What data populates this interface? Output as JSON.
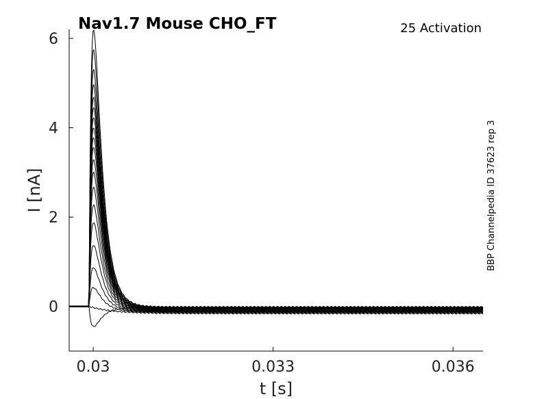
{
  "chart_data": {
    "type": "line",
    "title": "Nav1.7  Mouse  CHO_FT",
    "subtitle": "25  Activation",
    "side_note": "BBP Channelpedia ID 37623 rep 3",
    "xlabel": "t [s]",
    "ylabel": "I [nA]",
    "xlim": [
      0.0296,
      0.0365
    ],
    "ylim": [
      -1.0,
      6.2
    ],
    "x_ticks": [
      0.03,
      0.033,
      0.036
    ],
    "x_tick_labels": [
      "0.03",
      "0.033",
      "0.036"
    ],
    "y_ticks": [
      0,
      2,
      4,
      6
    ],
    "y_tick_labels": [
      "0",
      "2",
      "4",
      "6"
    ],
    "grid": false,
    "legend": "none",
    "line_color": "#000000",
    "peak_time": 0.03018,
    "series_peaks": [
      -0.4,
      0.0,
      0.4,
      0.8,
      1.25,
      1.7,
      2.05,
      2.4,
      2.7,
      2.95,
      3.2,
      3.4,
      3.6,
      3.8,
      4.0,
      4.2,
      4.45,
      4.75,
      5.15,
      5.55
    ],
    "series_tail_offsets": [
      -0.03,
      -0.16,
      -0.14,
      -0.13,
      -0.12,
      -0.11,
      -0.1,
      -0.09,
      -0.08,
      -0.07,
      -0.06,
      -0.05,
      -0.05,
      -0.04,
      -0.04,
      -0.03,
      -0.03,
      -0.02,
      -0.02,
      -0.01
    ]
  }
}
